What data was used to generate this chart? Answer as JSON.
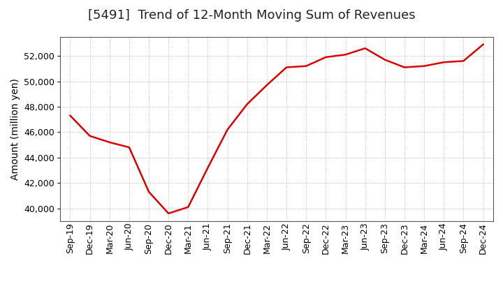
{
  "title": "[5491]  Trend of 12-Month Moving Sum of Revenues",
  "ylabel": "Amount (million yen)",
  "line_color": "#dd0000",
  "background_color": "#ffffff",
  "plot_background_color": "#ffffff",
  "grid_color": "#999999",
  "x_labels": [
    "Sep-19",
    "Dec-19",
    "Mar-20",
    "Jun-20",
    "Sep-20",
    "Dec-20",
    "Mar-21",
    "Jun-21",
    "Sep-21",
    "Dec-21",
    "Mar-22",
    "Jun-22",
    "Sep-22",
    "Dec-22",
    "Mar-23",
    "Jun-23",
    "Sep-23",
    "Dec-23",
    "Mar-24",
    "Jun-24",
    "Sep-24",
    "Dec-24"
  ],
  "values": [
    47300,
    45700,
    45200,
    44800,
    41300,
    39600,
    40100,
    43200,
    46200,
    48200,
    49700,
    51100,
    51200,
    51900,
    52100,
    52600,
    51700,
    51100,
    51200,
    51500,
    51600,
    52900
  ],
  "ylim": [
    39000,
    53500
  ],
  "yticks": [
    40000,
    42000,
    44000,
    46000,
    48000,
    50000,
    52000
  ],
  "title_fontsize": 13,
  "axis_fontsize": 10,
  "tick_fontsize": 9,
  "line_width": 1.8
}
